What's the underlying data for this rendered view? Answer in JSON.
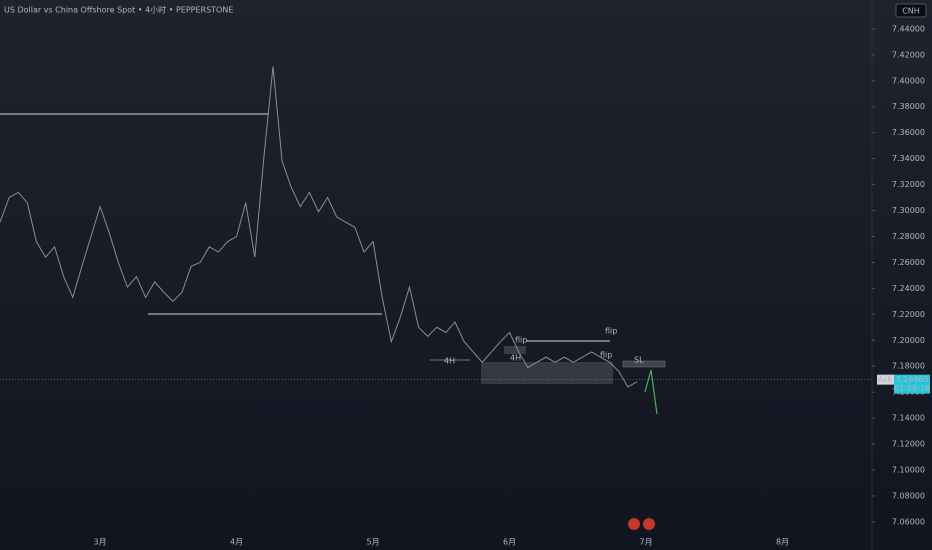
{
  "chart_data": {
    "type": "line",
    "title": "US Dollar vs China Offshore Spot  •  4小时  •  PEPPERSTONE",
    "currency": "CNH",
    "categories": [
      null,
      null,
      null,
      null,
      null,
      null,
      null,
      null,
      null,
      null,
      null,
      "3月",
      null,
      null,
      null,
      null,
      null,
      null,
      null,
      null,
      null,
      null,
      null,
      null,
      null,
      null,
      "4月",
      null,
      null,
      null,
      null,
      null,
      null,
      null,
      null,
      null,
      null,
      null,
      null,
      null,
      null,
      "5月",
      null,
      null,
      null,
      null,
      null,
      null,
      null,
      null,
      null,
      null,
      null,
      null,
      null,
      null,
      "6月",
      null,
      null,
      null,
      null,
      null,
      null,
      null,
      null,
      null,
      null,
      null,
      null,
      null,
      null,
      "7月",
      null,
      null,
      null,
      null,
      null,
      null,
      null,
      null,
      null,
      null,
      null,
      null,
      null,
      null,
      "8月",
      null,
      null,
      null,
      null,
      null,
      null,
      null,
      null,
      null
    ],
    "series": [
      {
        "color": "#8a8d96",
        "values": [
          7.291,
          7.31,
          7.314,
          7.306,
          7.276,
          7.264,
          7.272,
          7.249,
          7.233,
          7.257,
          7.28,
          7.303,
          7.283,
          7.26,
          7.241,
          7.249,
          7.233,
          7.245,
          7.237,
          7.23,
          7.237,
          7.257,
          7.26,
          7.272,
          7.268,
          7.276,
          7.28,
          7.306,
          7.264,
          7.341,
          7.411,
          7.338,
          7.318,
          7.303,
          7.314,
          7.299,
          7.31,
          7.295,
          7.291,
          7.287,
          7.268,
          7.276,
          7.233,
          7.199,
          7.218,
          7.241,
          7.21,
          7.203,
          7.21,
          7.206,
          7.214,
          7.199,
          7.191,
          7.183,
          7.191,
          7.199,
          7.206,
          7.191,
          7.179,
          7.183,
          7.187,
          7.183,
          7.187,
          7.183,
          7.187,
          7.191,
          7.187,
          7.183,
          7.176,
          7.164,
          7.168,
          null,
          null,
          null,
          null,
          null,
          null,
          null,
          null,
          null,
          null,
          null,
          null,
          null,
          null,
          null,
          null,
          null,
          null,
          null,
          null,
          null,
          null,
          null,
          null,
          null
        ]
      }
    ],
    "ylim": [
      7.053,
      7.453
    ],
    "yticks": [
      {
        "value": 7.44,
        "label": "7.44000"
      },
      {
        "value": 7.42,
        "label": "7.42000"
      },
      {
        "value": 7.4,
        "label": "7.40000"
      },
      {
        "value": 7.38,
        "label": "7.38000"
      },
      {
        "value": 7.36,
        "label": "7.36000"
      },
      {
        "value": 7.34,
        "label": "7.34000"
      },
      {
        "value": 7.32,
        "label": "7.32000"
      },
      {
        "value": 7.3,
        "label": "7.30000"
      },
      {
        "value": 7.28,
        "label": "7.28000"
      },
      {
        "value": 7.26,
        "label": "7.26000"
      },
      {
        "value": 7.24,
        "label": "7.24000"
      },
      {
        "value": 7.22,
        "label": "7.22000"
      },
      {
        "value": 7.2,
        "label": "7.20000"
      },
      {
        "value": 7.18,
        "label": "7.18000"
      },
      {
        "value": 7.16,
        "label": "7.16000"
      },
      {
        "value": 7.14,
        "label": "7.14000"
      },
      {
        "value": 7.12,
        "label": "7.12000"
      },
      {
        "value": 7.1,
        "label": "7.10000"
      },
      {
        "value": 7.08,
        "label": "7.08000"
      },
      {
        "value": 7.06,
        "label": "7.06000"
      }
    ],
    "last_price": 7.16965,
    "ask_label": "Ask",
    "countdown": "01:59:18",
    "annotations": [
      "flip",
      "flip",
      "flip",
      "4H",
      "4H",
      "SL"
    ]
  }
}
